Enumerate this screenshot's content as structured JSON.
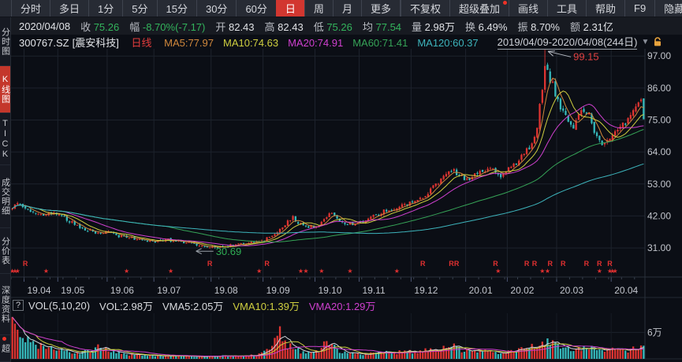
{
  "toolbar": {
    "left_tabs": [
      {
        "label": "分时"
      },
      {
        "label": "多日"
      },
      {
        "label": "1分"
      },
      {
        "label": "5分"
      },
      {
        "label": "15分"
      },
      {
        "label": "30分"
      },
      {
        "label": "60分"
      },
      {
        "label": "日",
        "active": true
      },
      {
        "label": "周"
      },
      {
        "label": "月"
      },
      {
        "label": "更多"
      }
    ],
    "right_tabs": [
      {
        "label": "不复权"
      },
      {
        "label": "超级叠加",
        "dot": true
      },
      {
        "label": "画线"
      },
      {
        "label": "工具"
      },
      {
        "label": "帮助"
      },
      {
        "label": "F9"
      },
      {
        "label": "隐藏",
        "suffix": "▶"
      }
    ]
  },
  "infobar": {
    "date": "2020/04/08",
    "items": [
      {
        "label": "收",
        "value": "75.26",
        "cls": "v-green"
      },
      {
        "label": "幅",
        "value": "-8.70%(-7.17)",
        "cls": "v-green"
      },
      {
        "label": "开",
        "value": "82.43",
        "cls": "v-white"
      },
      {
        "label": "高",
        "value": "82.43",
        "cls": "v-white"
      },
      {
        "label": "低",
        "value": "75.26",
        "cls": "v-green"
      },
      {
        "label": "均",
        "value": "77.54",
        "cls": "v-green"
      },
      {
        "label": "量",
        "value": "2.98万",
        "cls": "v-white"
      },
      {
        "label": "换",
        "value": "6.49%",
        "cls": "v-white"
      },
      {
        "label": "振",
        "value": "8.70%",
        "cls": "v-white"
      },
      {
        "label": "额",
        "value": "2.31亿",
        "cls": "v-white"
      }
    ]
  },
  "sidebar": {
    "items": [
      {
        "label": "分时图"
      },
      {
        "label": "K线图",
        "active": true
      },
      {
        "label": "TICK"
      },
      {
        "label": "成交明细"
      },
      {
        "label": "分价表"
      },
      {
        "label": "深度资料"
      },
      {
        "label": "超",
        "dot": true
      }
    ]
  },
  "legend": {
    "code": "300767.SZ",
    "name": "[震安科技]",
    "period": "日线",
    "mas": [
      {
        "label": "MA5:77.97",
        "color": "#d0883c"
      },
      {
        "label": "MA10:74.63",
        "color": "#cfcf40"
      },
      {
        "label": "MA20:74.91",
        "color": "#cf40cf"
      },
      {
        "label": "MA60:71.41",
        "color": "#36a357"
      },
      {
        "label": "MA120:60.37",
        "color": "#3db4bc"
      }
    ],
    "range": "2019/04/09-2020/04/08(244日)",
    "caret": "▼"
  },
  "volume_header": {
    "help": "?",
    "title": "VOL(5,10,20)",
    "vol": "VOL:2.98万",
    "vma5": "VMA5:2.05万",
    "vma10": "VMA10:1.39万",
    "vma20": "VMA20:1.29万"
  },
  "chart_data": {
    "type": "candlestick+volume",
    "title": "300767.SZ 震安科技 日线 K线图",
    "date_range": "2019/04/09-2020/04/08",
    "n_days": 244,
    "seed": 11,
    "ylim": [
      21,
      99.5
    ],
    "y_ticks": [
      97,
      86,
      75,
      64,
      53,
      42,
      31
    ],
    "vol_max": 10,
    "vol_grid": 6,
    "vol_axis_label": "6万",
    "months": [
      {
        "label": "19.04",
        "day": 5
      },
      {
        "label": "19.05",
        "day": 18
      },
      {
        "label": "19.06",
        "day": 37
      },
      {
        "label": "19.07",
        "day": 55
      },
      {
        "label": "19.08",
        "day": 77
      },
      {
        "label": "19.09",
        "day": 97
      },
      {
        "label": "19.10",
        "day": 117
      },
      {
        "label": "19.11",
        "day": 134
      },
      {
        "label": "19.12",
        "day": 154
      },
      {
        "label": "20.01",
        "day": 175
      },
      {
        "label": "20.02",
        "day": 191
      },
      {
        "label": "20.03",
        "day": 210
      },
      {
        "label": "20.04",
        "day": 231
      }
    ],
    "price_anchors": [
      [
        0,
        44.5
      ],
      [
        2,
        46.5
      ],
      [
        4,
        45.2
      ],
      [
        8,
        43.2
      ],
      [
        12,
        42.2
      ],
      [
        15,
        43.2
      ],
      [
        18,
        42.6
      ],
      [
        22,
        40.2
      ],
      [
        26,
        38.2
      ],
      [
        31,
        36.6
      ],
      [
        35,
        36.0
      ],
      [
        37,
        36.4
      ],
      [
        40,
        35.2
      ],
      [
        44,
        34.6
      ],
      [
        48,
        34.1
      ],
      [
        52,
        33.6
      ],
      [
        56,
        33.3
      ],
      [
        59,
        33.9
      ],
      [
        62,
        33.5
      ],
      [
        66,
        33.0
      ],
      [
        70,
        32.4
      ],
      [
        74,
        31.8
      ],
      [
        78,
        31.2
      ],
      [
        82,
        31.6
      ],
      [
        86,
        32.1
      ],
      [
        90,
        32.8
      ],
      [
        94,
        33.1
      ],
      [
        97,
        33.7
      ],
      [
        100,
        35.2
      ],
      [
        103,
        37.6
      ],
      [
        106,
        40.2
      ],
      [
        108,
        41.6
      ],
      [
        110,
        39.6
      ],
      [
        113,
        38.6
      ],
      [
        116,
        38.1
      ],
      [
        119,
        39.6
      ],
      [
        121,
        42.0
      ],
      [
        123,
        43.1
      ],
      [
        125,
        41.0
      ],
      [
        128,
        39.6
      ],
      [
        131,
        38.9
      ],
      [
        134,
        39.9
      ],
      [
        137,
        41.0
      ],
      [
        140,
        42.1
      ],
      [
        143,
        43.6
      ],
      [
        146,
        44.4
      ],
      [
        149,
        45.1
      ],
      [
        152,
        45.9
      ],
      [
        154,
        46.6
      ],
      [
        157,
        48.1
      ],
      [
        160,
        50.1
      ],
      [
        163,
        52.6
      ],
      [
        166,
        55.1
      ],
      [
        168,
        56.6
      ],
      [
        170,
        57.6
      ],
      [
        172,
        55.6
      ],
      [
        175,
        54.6
      ],
      [
        178,
        56.1
      ],
      [
        181,
        57.6
      ],
      [
        184,
        58.6
      ],
      [
        186,
        57.1
      ],
      [
        188,
        55.6
      ],
      [
        190,
        57.1
      ],
      [
        192,
        58.6
      ],
      [
        195,
        61.1
      ],
      [
        198,
        64.6
      ],
      [
        200,
        67.1
      ],
      [
        202,
        73.1
      ],
      [
        204,
        86.0
      ],
      [
        205,
        94.0
      ],
      [
        206,
        91.0
      ],
      [
        208,
        87.0
      ],
      [
        210,
        81.0
      ],
      [
        212,
        77.6
      ],
      [
        214,
        74.6
      ],
      [
        216,
        73.1
      ],
      [
        218,
        76.1
      ],
      [
        220,
        78.6
      ],
      [
        222,
        77.1
      ],
      [
        224,
        71.1
      ],
      [
        226,
        67.1
      ],
      [
        227,
        65.6
      ],
      [
        229,
        68.6
      ],
      [
        231,
        70.6
      ],
      [
        233,
        71.6
      ],
      [
        236,
        74.1
      ],
      [
        239,
        78.1
      ],
      [
        241,
        80.6
      ],
      [
        242,
        82.4
      ],
      [
        243,
        75.26
      ]
    ],
    "volume_anchors": [
      [
        0,
        9.0
      ],
      [
        1,
        7.5
      ],
      [
        2,
        6.0
      ],
      [
        4,
        4.5
      ],
      [
        8,
        3.4
      ],
      [
        12,
        2.6
      ],
      [
        18,
        2.0
      ],
      [
        24,
        1.5
      ],
      [
        30,
        1.8
      ],
      [
        34,
        2.8
      ],
      [
        37,
        2.2
      ],
      [
        42,
        1.1
      ],
      [
        48,
        0.9
      ],
      [
        54,
        0.8
      ],
      [
        62,
        0.7
      ],
      [
        70,
        0.6
      ],
      [
        78,
        0.6
      ],
      [
        86,
        0.7
      ],
      [
        94,
        0.9
      ],
      [
        99,
        2.0
      ],
      [
        101,
        5.5
      ],
      [
        103,
        6.5
      ],
      [
        105,
        3.5
      ],
      [
        108,
        2.6
      ],
      [
        111,
        1.7
      ],
      [
        115,
        1.3
      ],
      [
        118,
        1.8
      ],
      [
        121,
        3.8
      ],
      [
        123,
        3.2
      ],
      [
        126,
        1.8
      ],
      [
        130,
        1.2
      ],
      [
        134,
        1.1
      ],
      [
        138,
        1.2
      ],
      [
        143,
        1.4
      ],
      [
        148,
        1.5
      ],
      [
        152,
        1.6
      ],
      [
        156,
        1.7
      ],
      [
        160,
        2.0
      ],
      [
        164,
        2.3
      ],
      [
        167,
        2.6
      ],
      [
        170,
        2.7
      ],
      [
        173,
        2.0
      ],
      [
        176,
        1.7
      ],
      [
        180,
        1.6
      ],
      [
        184,
        1.7
      ],
      [
        187,
        1.4
      ],
      [
        190,
        1.5
      ],
      [
        193,
        1.7
      ],
      [
        196,
        2.1
      ],
      [
        199,
        2.7
      ],
      [
        202,
        3.2
      ],
      [
        204,
        3.8
      ],
      [
        206,
        3.6
      ],
      [
        209,
        3.1
      ],
      [
        212,
        2.8
      ],
      [
        215,
        2.5
      ],
      [
        218,
        2.3
      ],
      [
        221,
        2.3
      ],
      [
        224,
        2.4
      ],
      [
        227,
        2.2
      ],
      [
        230,
        2.0
      ],
      [
        233,
        1.9
      ],
      [
        236,
        1.9
      ],
      [
        239,
        2.3
      ],
      [
        241,
        2.6
      ],
      [
        243,
        2.98
      ]
    ],
    "special": {
      "bottom": {
        "day": 78,
        "low": 30.69
      },
      "peak": {
        "day": 205,
        "high": 99.15
      },
      "last": {
        "open": 82.43,
        "high": 82.43,
        "low": 75.26,
        "close": 75.26
      }
    },
    "annotations": {
      "peak": {
        "text": "99.15",
        "color": "#e14141"
      },
      "bottom": {
        "text": "30.69",
        "color": "#2fae54"
      }
    },
    "ma_windows": [
      5,
      10,
      20,
      60,
      120
    ],
    "ma_colors": [
      "#d0883c",
      "#cfcf40",
      "#cf40cf",
      "#36a357",
      "#3db4bc"
    ],
    "vma_windows": [
      5,
      10,
      20
    ],
    "vma_colors": [
      "#d3d5da",
      "#cfcf40",
      "#cf40cf"
    ],
    "signal_markers": {
      "stars": [
        0,
        1,
        2,
        13,
        44,
        61,
        95,
        111,
        113,
        119,
        130,
        148,
        187,
        204,
        206,
        226,
        230,
        231,
        232
      ],
      "flags": [
        5,
        76,
        98,
        158,
        169,
        171,
        186,
        198,
        201,
        207,
        212,
        221,
        226,
        230
      ]
    },
    "colors": {
      "up": "#de3431",
      "down": "#35b8ba",
      "grid": "#1d222c",
      "axis_text": "#c3c6cd",
      "border": "#2a303b"
    }
  }
}
